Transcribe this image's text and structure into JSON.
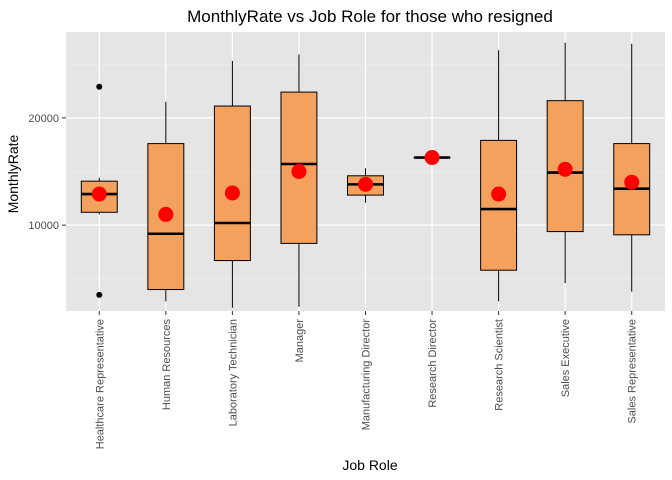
{
  "chart_data": {
    "type": "boxplot",
    "title": "MonthlyRate vs Job Role for those who resigned",
    "xlabel": "Job Role",
    "ylabel": "MonthlyRate",
    "ylim": [
      2000,
      28000
    ],
    "yticks": [
      10000,
      20000
    ],
    "grid": true,
    "colors": {
      "panel": "#e5e5e5",
      "grid_major": "#ffffff",
      "box_fill": "#f4a15d",
      "box_stroke": "#000000",
      "mean_point": "#ff0000",
      "outlier": "#000000"
    },
    "categories": [
      "Healthcare Representative",
      "Human Resources",
      "Laboratory Technician",
      "Manager",
      "Manufacturing Director",
      "Research Director",
      "Research Scientist",
      "Sales Executive",
      "Sales Representative"
    ],
    "boxes": [
      {
        "min": 11000,
        "q1": 11200,
        "median": 12900,
        "q3": 14100,
        "max": 14400,
        "mean": 12900,
        "outliers": [
          22900,
          3500
        ]
      },
      {
        "min": 2900,
        "q1": 4000,
        "median": 9200,
        "q3": 17600,
        "max": 21500,
        "mean": 11000,
        "outliers": []
      },
      {
        "min": 2300,
        "q1": 6700,
        "median": 10200,
        "q3": 21100,
        "max": 25300,
        "mean": 13000,
        "outliers": []
      },
      {
        "min": 2400,
        "q1": 8300,
        "median": 15700,
        "q3": 22400,
        "max": 25900,
        "mean": 15000,
        "outliers": []
      },
      {
        "min": 12100,
        "q1": 12800,
        "median": 13800,
        "q3": 14600,
        "max": 15300,
        "mean": 13800,
        "outliers": []
      },
      {
        "min": 16300,
        "q1": 16300,
        "median": 16300,
        "q3": 16300,
        "max": 16300,
        "mean": 16300,
        "outliers": []
      },
      {
        "min": 2900,
        "q1": 5800,
        "median": 11500,
        "q3": 17900,
        "max": 26300,
        "mean": 12900,
        "outliers": []
      },
      {
        "min": 4600,
        "q1": 9400,
        "median": 14900,
        "q3": 21600,
        "max": 27000,
        "mean": 15200,
        "outliers": []
      },
      {
        "min": 3800,
        "q1": 9100,
        "median": 13400,
        "q3": 17600,
        "max": 26900,
        "mean": 14000,
        "outliers": []
      }
    ]
  }
}
